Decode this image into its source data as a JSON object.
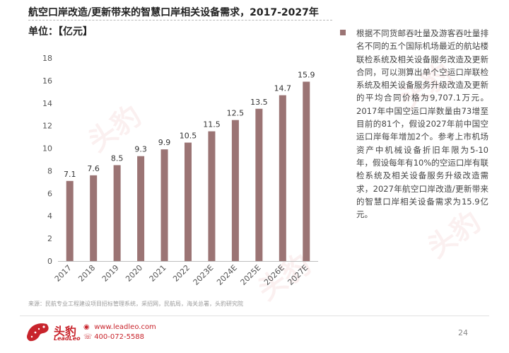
{
  "header": {
    "title": "航空口岸改造/更新带来的智慧口岸相关设备需求，2017-2027年",
    "unit": "单位：【亿元】"
  },
  "chart_data": {
    "type": "bar",
    "categories": [
      "2017",
      "2018",
      "2019",
      "2020",
      "2021",
      "2022",
      "2023E",
      "2024E",
      "2025E",
      "2026E",
      "2027E"
    ],
    "values": [
      7.1,
      7.6,
      8.5,
      9.3,
      9.9,
      10.5,
      11.5,
      12.5,
      13.5,
      14.7,
      15.9
    ],
    "data_labels": [
      "7.1",
      "7.6",
      "8.5",
      "9.3",
      "9.9",
      "10.5",
      "11.5",
      "12.5",
      "13.5",
      "14.7",
      "15.9"
    ],
    "yticks": [
      "0",
      "2",
      "4",
      "6",
      "8",
      "10",
      "12",
      "14",
      "16",
      "18"
    ],
    "ylim": [
      0,
      18
    ],
    "title": "",
    "xlabel": "",
    "ylabel": "",
    "grid": false,
    "legend": "none",
    "bar_color": "#9b7474"
  },
  "description": "根据不同货邮吞吐量及游客吞吐量排名不同的五个国际机场最近的航站楼联检系统及相关设备服务改造及更新合同，可以测算出单个空运口岸联检系统及相关设备服务升级改造及更新的平均合同价格为9,707.1万元。2017年中国空运口岸数量由73增至目前的81个，假设2027年前中国空运口岸每年增加2个。参考上市机场资产中机械设备折旧年限为5-10年，假设每年有10%的空运口岸有联检系统及相关设备服务升级改造需求，2027年航空口岸改造/更新带来的智慧口岸相关设备需求为15.9亿元。",
  "source": "来源：民航专业工程建设项目招标管理系统，采招网，民航局，海关总署，头豹研究院",
  "footer": {
    "logo_cn": "头豹",
    "logo_en": "LeadLeo",
    "website": "www.leadleo.com",
    "phone": "400-072-5588",
    "page_number": "24"
  },
  "watermark_text": "头豹 LeadLeo",
  "colors": {
    "accent": "#c8242c",
    "bar": "#9b7474"
  }
}
